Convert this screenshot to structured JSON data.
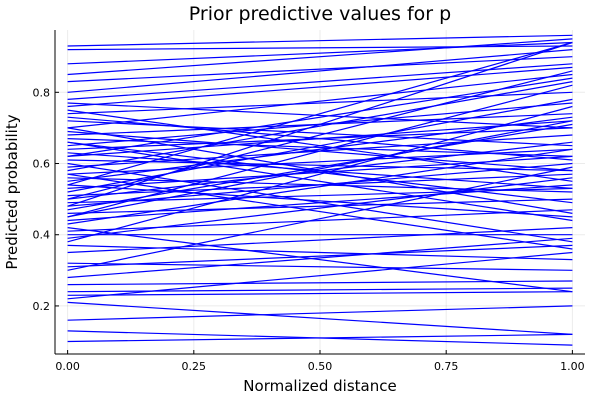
{
  "chart_data": {
    "type": "line",
    "title": "Prior predictive values for p",
    "xlabel": "Normalized distance",
    "ylabel": "Predicted probability",
    "xlim": [
      -0.025,
      1.025
    ],
    "ylim": [
      0.065,
      0.975
    ],
    "xticks": [
      0.0,
      0.25,
      0.5,
      0.75,
      1.0
    ],
    "xtick_labels": [
      "0.00",
      "0.25",
      "0.50",
      "0.75",
      "1.00"
    ],
    "yticks": [
      0.2,
      0.4,
      0.6,
      0.8
    ],
    "ytick_labels": [
      "0.2",
      "0.4",
      "0.6",
      "0.8"
    ],
    "grid": true,
    "legend": "none",
    "line_color": "#0000ff",
    "x": [
      0.0,
      1.0
    ],
    "series": [
      {
        "values": [
          0.93,
          0.96
        ]
      },
      {
        "values": [
          0.92,
          0.93
        ]
      },
      {
        "values": [
          0.88,
          0.94
        ]
      },
      {
        "values": [
          0.85,
          0.95
        ]
      },
      {
        "values": [
          0.83,
          0.9
        ]
      },
      {
        "values": [
          0.8,
          0.92
        ]
      },
      {
        "values": [
          0.78,
          0.88
        ]
      },
      {
        "values": [
          0.77,
          0.7
        ]
      },
      {
        "values": [
          0.76,
          0.87
        ]
      },
      {
        "values": [
          0.75,
          0.55
        ]
      },
      {
        "values": [
          0.74,
          0.8
        ]
      },
      {
        "values": [
          0.72,
          0.65
        ]
      },
      {
        "values": [
          0.7,
          0.85
        ]
      },
      {
        "values": [
          0.69,
          0.58
        ]
      },
      {
        "values": [
          0.68,
          0.74
        ]
      },
      {
        "values": [
          0.67,
          0.62
        ]
      },
      {
        "values": [
          0.66,
          0.44
        ]
      },
      {
        "values": [
          0.65,
          0.77
        ]
      },
      {
        "values": [
          0.64,
          0.7
        ]
      },
      {
        "values": [
          0.63,
          0.53
        ]
      },
      {
        "values": [
          0.62,
          0.72
        ]
      },
      {
        "values": [
          0.61,
          0.58
        ]
      },
      {
        "values": [
          0.6,
          0.38
        ]
      },
      {
        "values": [
          0.59,
          0.68
        ]
      },
      {
        "values": [
          0.58,
          0.83
        ]
      },
      {
        "values": [
          0.57,
          0.64
        ]
      },
      {
        "values": [
          0.56,
          0.52
        ]
      },
      {
        "values": [
          0.55,
          0.73
        ]
      },
      {
        "values": [
          0.54,
          0.45
        ]
      },
      {
        "values": [
          0.53,
          0.62
        ]
      },
      {
        "values": [
          0.52,
          0.78
        ]
      },
      {
        "values": [
          0.51,
          0.57
        ]
      },
      {
        "values": [
          0.5,
          0.66
        ]
      },
      {
        "values": [
          0.5,
          0.86
        ]
      },
      {
        "values": [
          0.49,
          0.53
        ]
      },
      {
        "values": [
          0.48,
          0.94
        ]
      },
      {
        "values": [
          0.48,
          0.6
        ]
      },
      {
        "values": [
          0.47,
          0.71
        ]
      },
      {
        "values": [
          0.46,
          0.5
        ]
      },
      {
        "values": [
          0.45,
          0.82
        ]
      },
      {
        "values": [
          0.44,
          0.54
        ]
      },
      {
        "values": [
          0.43,
          0.64
        ]
      },
      {
        "values": [
          0.42,
          0.24
        ]
      },
      {
        "values": [
          0.41,
          0.47
        ]
      },
      {
        "values": [
          0.4,
          0.4
        ]
      },
      {
        "values": [
          0.39,
          0.56
        ]
      },
      {
        "values": [
          0.38,
          0.76
        ]
      },
      {
        "values": [
          0.37,
          0.33
        ]
      },
      {
        "values": [
          0.35,
          0.42
        ]
      },
      {
        "values": [
          0.32,
          0.3
        ]
      },
      {
        "values": [
          0.31,
          0.37
        ]
      },
      {
        "values": [
          0.3,
          0.59
        ]
      },
      {
        "values": [
          0.28,
          0.39
        ]
      },
      {
        "values": [
          0.26,
          0.27
        ]
      },
      {
        "values": [
          0.24,
          0.25
        ]
      },
      {
        "values": [
          0.23,
          0.24
        ]
      },
      {
        "values": [
          0.22,
          0.35
        ]
      },
      {
        "values": [
          0.21,
          0.12
        ]
      },
      {
        "values": [
          0.16,
          0.2
        ]
      },
      {
        "values": [
          0.13,
          0.09
        ]
      },
      {
        "values": [
          0.1,
          0.12
        ]
      },
      {
        "values": [
          0.57,
          0.36
        ]
      },
      {
        "values": [
          0.66,
          0.49
        ]
      },
      {
        "values": [
          0.73,
          0.61
        ]
      },
      {
        "values": [
          0.54,
          0.94
        ]
      },
      {
        "values": [
          0.45,
          0.72
        ]
      },
      {
        "values": [
          0.62,
          0.84
        ]
      },
      {
        "values": [
          0.7,
          0.46
        ]
      }
    ]
  }
}
